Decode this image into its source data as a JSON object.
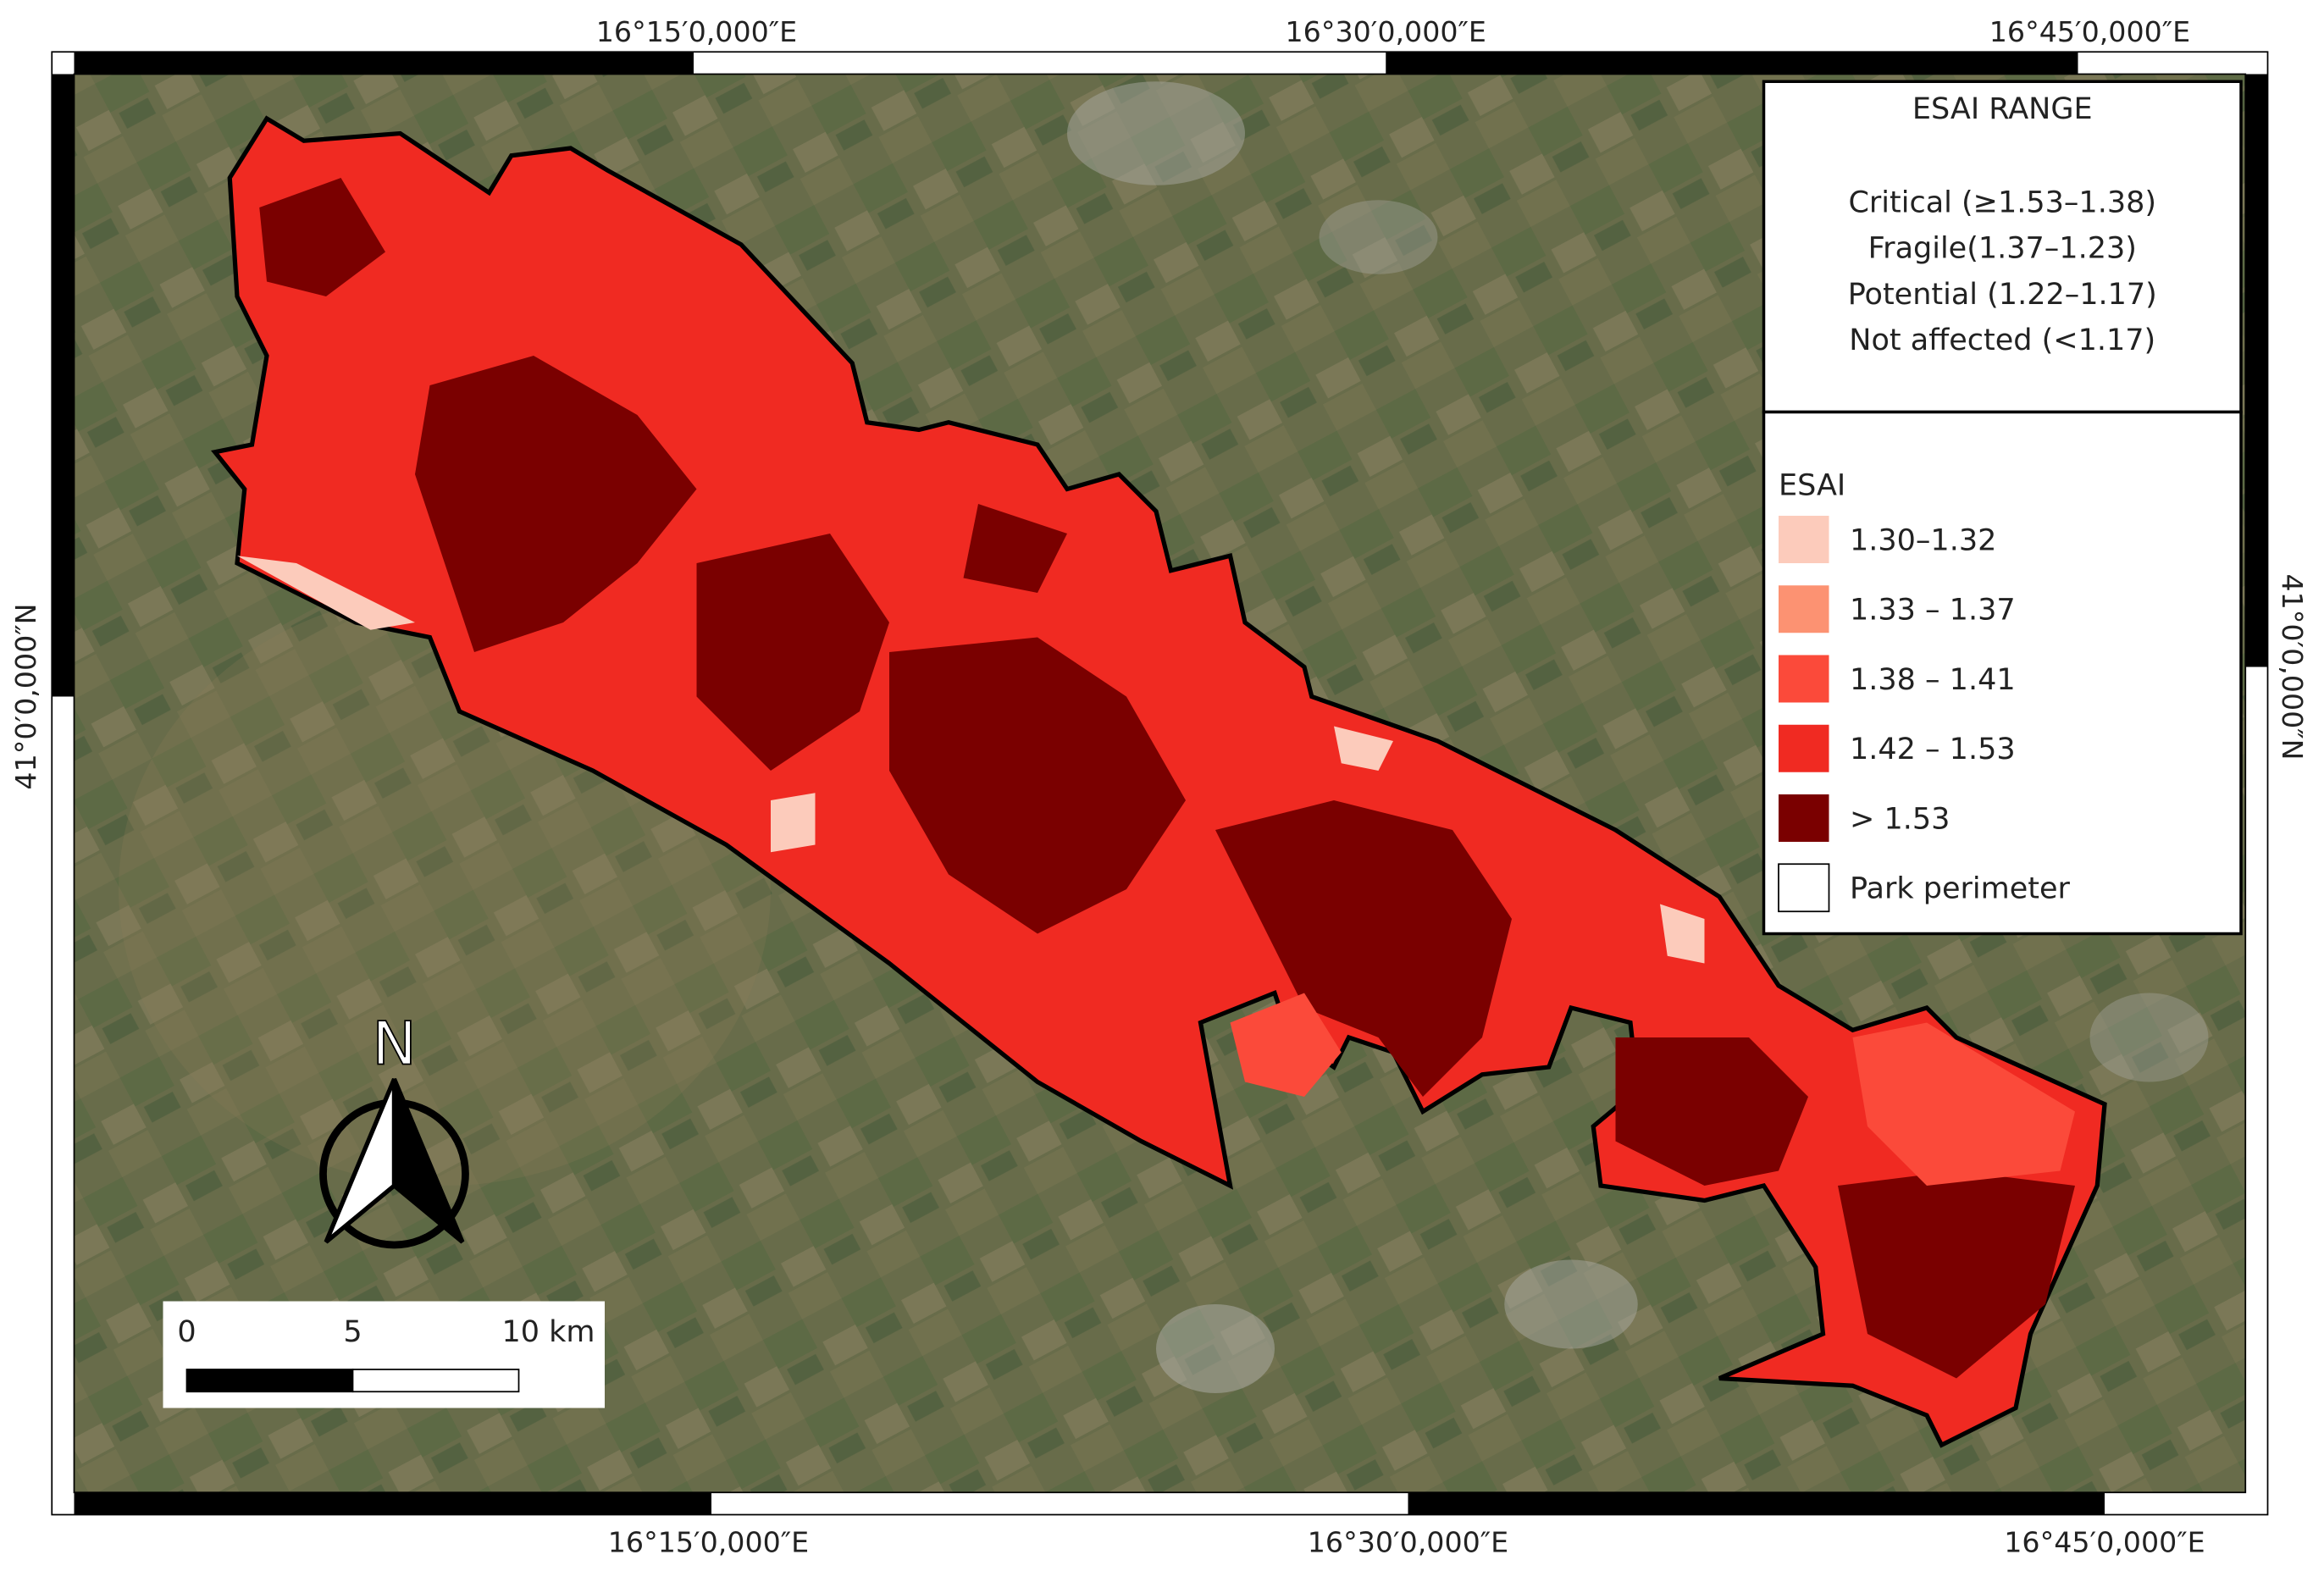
{
  "map": {
    "grid_labels": {
      "top": [
        "16°15′0,000″E",
        "16°30′0,000″E",
        "16°45′0,000″E"
      ],
      "bottom": [
        "16°15′0,000″E",
        "16°30′0,000″E",
        "16°45′0,000″E"
      ],
      "left": "41°0′0,000″N",
      "right": "41°0′0,000″N"
    },
    "range_legend": {
      "title": "ESAI RANGE",
      "items": [
        "Critical (≥1.53–1.38)",
        "Fragile(1.37–1.23)",
        "Potential (1.22–1.17)",
        "Not affected (<1.17)"
      ]
    },
    "legend": {
      "title": "ESAI",
      "items": [
        {
          "label": "1.30–1.32",
          "color": "#fccbbb"
        },
        {
          "label": "1.33 – 1.37",
          "color": "#fc9272"
        },
        {
          "label": "1.38 – 1.41",
          "color": "#fb4a3a"
        },
        {
          "label": "1.42 – 1.53",
          "color": "#f02a22"
        },
        {
          "label": "> 1.53",
          "color": "#7a0000"
        },
        {
          "label": "Park perimeter",
          "color": "#ffffff"
        }
      ]
    },
    "north_arrow": {
      "label": "N"
    },
    "scale_bar": {
      "labels": [
        "0",
        "5",
        "10 km"
      ]
    }
  }
}
